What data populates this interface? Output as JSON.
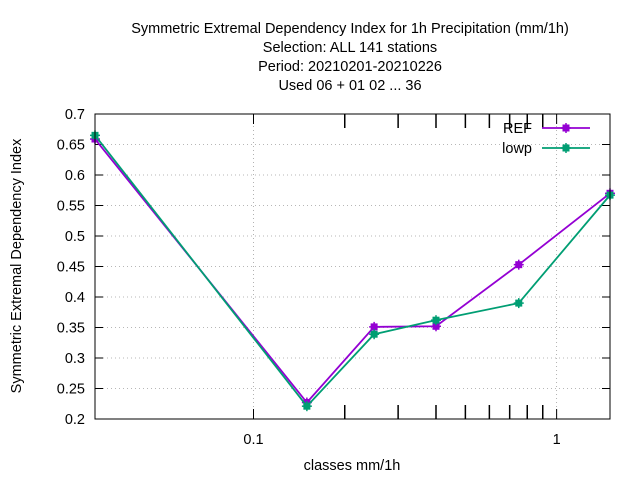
{
  "chart_data": {
    "type": "line",
    "title_lines": [
      "Symmetric Extremal Dependency Index  for 1h Precipitation (mm/1h)",
      "Selection: ALL     141 stations",
      "Period: 20210201-20210226",
      "Used  06  + 01 02 ... 36"
    ],
    "xlabel": "classes mm/1h",
    "ylabel": "Symmetric Extremal Dependency Index",
    "x_scale": "log",
    "xlim": [
      0.03,
      1.5
    ],
    "ylim": [
      0.2,
      0.7
    ],
    "y_ticks": [
      "0.2",
      "0.25",
      "0.3",
      "0.35",
      "0.4",
      "0.45",
      "0.5",
      "0.55",
      "0.6",
      "0.65",
      "0.7"
    ],
    "x_tick_labels": [
      {
        "value": 0.1,
        "label": "0.1"
      },
      {
        "value": 1,
        "label": "1"
      }
    ],
    "x_minor_ticks": [
      0.2,
      0.3,
      0.4,
      0.5,
      0.6,
      0.7,
      0.8,
      0.9
    ],
    "grid": true,
    "legend_position": "top-right",
    "series": [
      {
        "name": "REF",
        "color": "#9400d3",
        "marker": "square-plus",
        "x": [
          0.03,
          0.15,
          0.25,
          0.4,
          0.75,
          1.5
        ],
        "y": [
          0.659,
          0.227,
          0.351,
          0.352,
          0.453,
          0.57
        ]
      },
      {
        "name": "lowp",
        "color": "#009e73",
        "marker": "square-plus",
        "x": [
          0.03,
          0.15,
          0.25,
          0.4,
          0.75,
          1.5
        ],
        "y": [
          0.665,
          0.221,
          0.339,
          0.362,
          0.39,
          0.567
        ]
      }
    ]
  }
}
